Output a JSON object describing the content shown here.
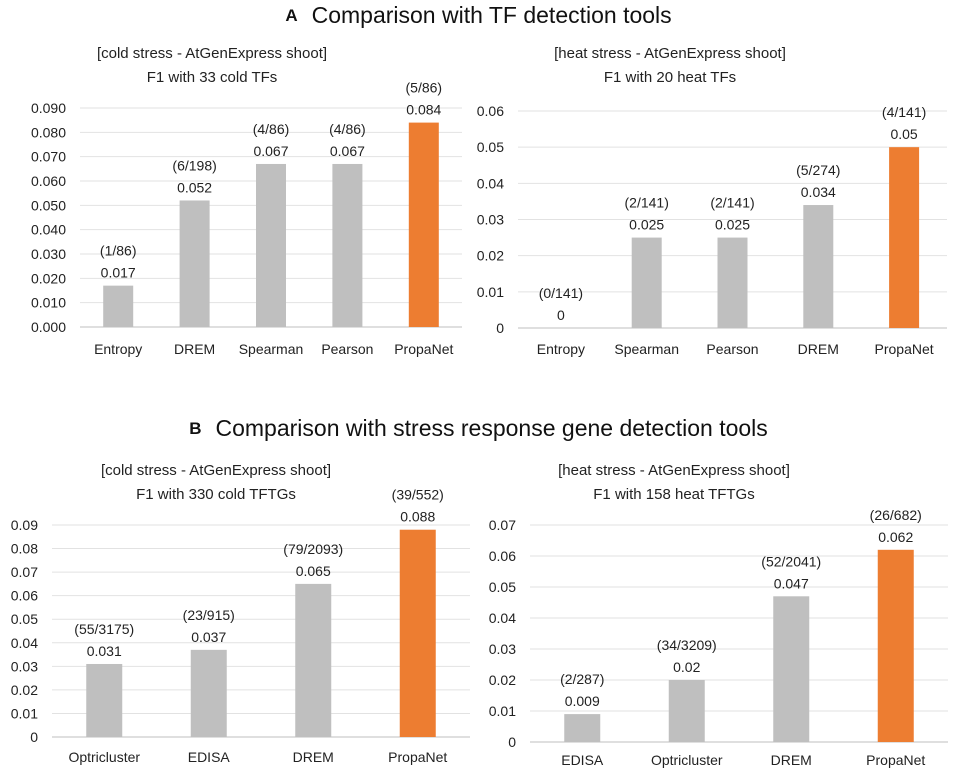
{
  "panels": {
    "a": {
      "letter": "A",
      "title": "Comparison with TF detection tools"
    },
    "b": {
      "letter": "B",
      "title": "Comparison with stress response gene detection tools"
    }
  },
  "colors": {
    "bar_default": "#bfbfbf",
    "bar_highlight": "#ed7d31"
  },
  "chart_data": [
    {
      "id": "a-cold",
      "type": "bar",
      "title_line1": "[cold stress - AtGenExpress shoot]",
      "title_line2": "F1 with 33 cold TFs",
      "categories": [
        "Entropy",
        "DREM",
        "Spearman",
        "Pearson",
        "PropaNet"
      ],
      "values": [
        0.017,
        0.052,
        0.067,
        0.067,
        0.084
      ],
      "value_labels": [
        "0.017",
        "0.052",
        "0.067",
        "0.067",
        "0.084"
      ],
      "count_labels": [
        "(1/86)",
        "(6/198)",
        "(4/86)",
        "(4/86)",
        "(5/86)"
      ],
      "highlight": "PropaNet",
      "ylim": [
        0,
        0.09
      ],
      "yticks": [
        "0.000",
        "0.010",
        "0.020",
        "0.030",
        "0.040",
        "0.050",
        "0.060",
        "0.070",
        "0.080",
        "0.090"
      ],
      "xlabel": "",
      "ylabel": ""
    },
    {
      "id": "a-heat",
      "type": "bar",
      "title_line1": "[heat stress - AtGenExpress shoot]",
      "title_line2": "F1 with 20 heat TFs",
      "categories": [
        "Entropy",
        "Spearman",
        "Pearson",
        "DREM",
        "PropaNet"
      ],
      "values": [
        0,
        0.025,
        0.025,
        0.034,
        0.05
      ],
      "value_labels": [
        "0",
        "0.025",
        "0.025",
        "0.034",
        "0.05"
      ],
      "count_labels": [
        "(0/141)",
        "(2/141)",
        "(2/141)",
        "(5/274)",
        "(4/141)"
      ],
      "highlight": "PropaNet",
      "ylim": [
        0,
        0.06
      ],
      "yticks": [
        "0",
        "0.01",
        "0.02",
        "0.03",
        "0.04",
        "0.05",
        "0.06"
      ],
      "xlabel": "",
      "ylabel": ""
    },
    {
      "id": "b-cold",
      "type": "bar",
      "title_line1": "[cold stress - AtGenExpress shoot]",
      "title_line2": "F1 with 330 cold TFTGs",
      "categories": [
        "Optricluster",
        "EDISA",
        "DREM",
        "PropaNet"
      ],
      "values": [
        0.031,
        0.037,
        0.065,
        0.088
      ],
      "value_labels": [
        "0.031",
        "0.037",
        "0.065",
        "0.088"
      ],
      "count_labels": [
        "(55/3175)",
        "(23/915)",
        "(79/2093)",
        "(39/552)"
      ],
      "highlight": "PropaNet",
      "ylim": [
        0,
        0.09
      ],
      "yticks": [
        "0",
        "0.01",
        "0.02",
        "0.03",
        "0.04",
        "0.05",
        "0.06",
        "0.07",
        "0.08",
        "0.09"
      ],
      "xlabel": "",
      "ylabel": ""
    },
    {
      "id": "b-heat",
      "type": "bar",
      "title_line1": "[heat stress - AtGenExpress shoot]",
      "title_line2": "F1 with 158 heat TFTGs",
      "categories": [
        "EDISA",
        "Optricluster",
        "DREM",
        "PropaNet"
      ],
      "values": [
        0.009,
        0.02,
        0.047,
        0.062
      ],
      "value_labels": [
        "0.009",
        "0.02",
        "0.047",
        "0.062"
      ],
      "count_labels": [
        "(2/287)",
        "(34/3209)",
        "(52/2041)",
        "(26/682)"
      ],
      "highlight": "PropaNet",
      "ylim": [
        0,
        0.07
      ],
      "yticks": [
        "0",
        "0.01",
        "0.02",
        "0.03",
        "0.04",
        "0.05",
        "0.06",
        "0.07"
      ],
      "xlabel": "",
      "ylabel": ""
    }
  ]
}
